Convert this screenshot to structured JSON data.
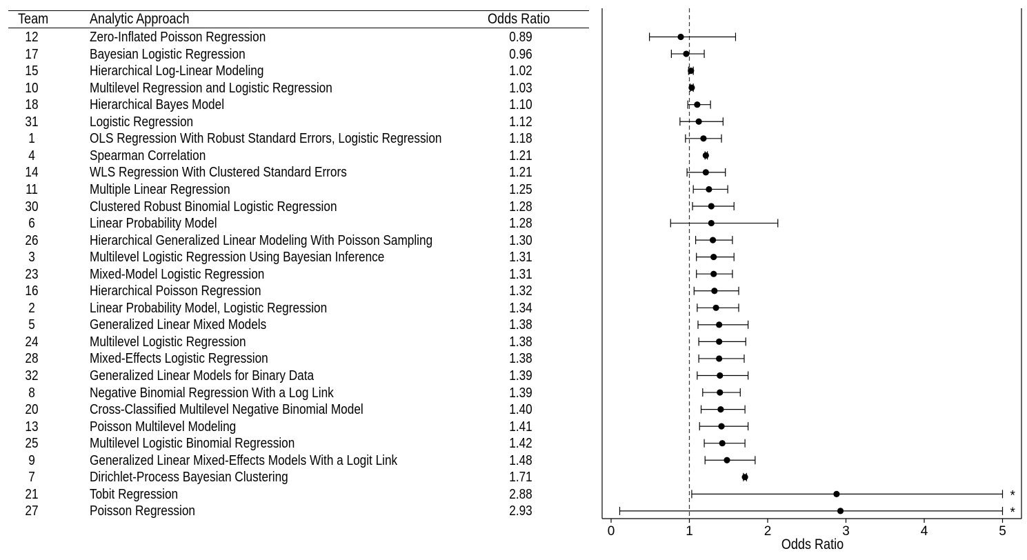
{
  "headers": {
    "team": "Team",
    "approach": "Analytic Approach",
    "odds_ratio": "Odds Ratio"
  },
  "rows": [
    {
      "team": "12",
      "approach": "Zero-Inflated Poisson Regression",
      "or": "0.89"
    },
    {
      "team": "17",
      "approach": "Bayesian Logistic Regression",
      "or": "0.96"
    },
    {
      "team": "15",
      "approach": "Hierarchical Log-Linear Modeling",
      "or": "1.02"
    },
    {
      "team": "10",
      "approach": "Multilevel Regression and Logistic Regression",
      "or": "1.03"
    },
    {
      "team": "18",
      "approach": "Hierarchical Bayes Model",
      "or": "1.10"
    },
    {
      "team": "31",
      "approach": "Logistic Regression",
      "or": "1.12"
    },
    {
      "team": "1",
      "approach": "OLS Regression With Robust Standard Errors, Logistic Regression",
      "or": "1.18"
    },
    {
      "team": "4",
      "approach": "Spearman Correlation",
      "or": "1.21"
    },
    {
      "team": "14",
      "approach": "WLS Regression With Clustered Standard Errors",
      "or": "1.21"
    },
    {
      "team": "11",
      "approach": "Multiple Linear Regression",
      "or": "1.25"
    },
    {
      "team": "30",
      "approach": "Clustered Robust Binomial Logistic Regression",
      "or": "1.28"
    },
    {
      "team": "6",
      "approach": "Linear Probability Model",
      "or": "1.28"
    },
    {
      "team": "26",
      "approach": "Hierarchical Generalized Linear Modeling With Poisson Sampling",
      "or": "1.30"
    },
    {
      "team": "3",
      "approach": "Multilevel Logistic Regression Using Bayesian Inference",
      "or": "1.31"
    },
    {
      "team": "23",
      "approach": "Mixed-Model Logistic Regression",
      "or": "1.31"
    },
    {
      "team": "16",
      "approach": "Hierarchical Poisson Regression",
      "or": "1.32"
    },
    {
      "team": "2",
      "approach": "Linear Probability Model, Logistic Regression",
      "or": "1.34"
    },
    {
      "team": "5",
      "approach": "Generalized Linear Mixed Models",
      "or": "1.38"
    },
    {
      "team": "24",
      "approach": "Multilevel Logistic Regression",
      "or": "1.38"
    },
    {
      "team": "28",
      "approach": "Mixed-Effects Logistic Regression",
      "or": "1.38"
    },
    {
      "team": "32",
      "approach": "Generalized Linear Models for Binary Data",
      "or": "1.39"
    },
    {
      "team": "8",
      "approach": "Negative Binomial Regression With a Log Link",
      "or": "1.39"
    },
    {
      "team": "20",
      "approach": "Cross-Classified Multilevel Negative Binomial Model",
      "or": "1.40"
    },
    {
      "team": "13",
      "approach": "Poisson Multilevel Modeling",
      "or": "1.41"
    },
    {
      "team": "25",
      "approach": "Multilevel Logistic Binomial Regression",
      "or": "1.42"
    },
    {
      "team": "9",
      "approach": "Generalized Linear Mixed-Effects Models With a Logit Link",
      "or": "1.48"
    },
    {
      "team": "7",
      "approach": "Dirichlet-Process Bayesian Clustering",
      "or": "1.71"
    },
    {
      "team": "21",
      "approach": "Tobit Regression",
      "or": "2.88"
    },
    {
      "team": "27",
      "approach": "Poisson Regression",
      "or": "2.93"
    }
  ],
  "chart_data": {
    "type": "scatter",
    "xlabel": "Odds Ratio",
    "xlim": [
      -0.1,
      5.25
    ],
    "xticks": [
      0,
      1,
      2,
      3,
      4,
      5
    ],
    "reference_line": 1,
    "truncation_marker": "*",
    "points": [
      {
        "team": "12",
        "or": 0.89,
        "lower": 0.49,
        "upper": 1.59,
        "truncated": false
      },
      {
        "team": "17",
        "or": 0.96,
        "lower": 0.77,
        "upper": 1.19,
        "truncated": false
      },
      {
        "team": "15",
        "or": 1.02,
        "lower": 0.99,
        "upper": 1.05,
        "truncated": false
      },
      {
        "team": "10",
        "or": 1.03,
        "lower": 1.01,
        "upper": 1.05,
        "truncated": false
      },
      {
        "team": "18",
        "or": 1.1,
        "lower": 0.98,
        "upper": 1.27,
        "truncated": false
      },
      {
        "team": "31",
        "or": 1.12,
        "lower": 0.88,
        "upper": 1.43,
        "truncated": false
      },
      {
        "team": "1",
        "or": 1.18,
        "lower": 0.95,
        "upper": 1.41,
        "truncated": false
      },
      {
        "team": "4",
        "or": 1.21,
        "lower": 1.2,
        "upper": 1.23,
        "truncated": false
      },
      {
        "team": "14",
        "or": 1.21,
        "lower": 0.97,
        "upper": 1.46,
        "truncated": false
      },
      {
        "team": "11",
        "or": 1.25,
        "lower": 1.05,
        "upper": 1.49,
        "truncated": false
      },
      {
        "team": "30",
        "or": 1.28,
        "lower": 1.04,
        "upper": 1.57,
        "truncated": false
      },
      {
        "team": "6",
        "or": 1.28,
        "lower": 0.76,
        "upper": 2.13,
        "truncated": false
      },
      {
        "team": "26",
        "or": 1.3,
        "lower": 1.08,
        "upper": 1.55,
        "truncated": false
      },
      {
        "team": "3",
        "or": 1.31,
        "lower": 1.09,
        "upper": 1.57,
        "truncated": false
      },
      {
        "team": "23",
        "or": 1.31,
        "lower": 1.09,
        "upper": 1.55,
        "truncated": false
      },
      {
        "team": "16",
        "or": 1.32,
        "lower": 1.06,
        "upper": 1.63,
        "truncated": false
      },
      {
        "team": "2",
        "or": 1.34,
        "lower": 1.1,
        "upper": 1.63,
        "truncated": false
      },
      {
        "team": "5",
        "or": 1.38,
        "lower": 1.11,
        "upper": 1.75,
        "truncated": false
      },
      {
        "team": "24",
        "or": 1.38,
        "lower": 1.12,
        "upper": 1.72,
        "truncated": false
      },
      {
        "team": "28",
        "or": 1.38,
        "lower": 1.12,
        "upper": 1.7,
        "truncated": false
      },
      {
        "team": "32",
        "or": 1.39,
        "lower": 1.1,
        "upper": 1.75,
        "truncated": false
      },
      {
        "team": "8",
        "or": 1.39,
        "lower": 1.17,
        "upper": 1.65,
        "truncated": false
      },
      {
        "team": "20",
        "or": 1.4,
        "lower": 1.15,
        "upper": 1.71,
        "truncated": false
      },
      {
        "team": "13",
        "or": 1.41,
        "lower": 1.13,
        "upper": 1.75,
        "truncated": false
      },
      {
        "team": "25",
        "or": 1.42,
        "lower": 1.19,
        "upper": 1.71,
        "truncated": false
      },
      {
        "team": "9",
        "or": 1.48,
        "lower": 1.2,
        "upper": 1.84,
        "truncated": false
      },
      {
        "team": "7",
        "or": 1.71,
        "lower": 1.69,
        "upper": 1.73,
        "truncated": false
      },
      {
        "team": "21",
        "or": 2.88,
        "lower": 1.03,
        "upper": 5.0,
        "truncated": true
      },
      {
        "team": "27",
        "or": 2.93,
        "lower": 0.11,
        "upper": 5.0,
        "truncated": true
      }
    ]
  }
}
